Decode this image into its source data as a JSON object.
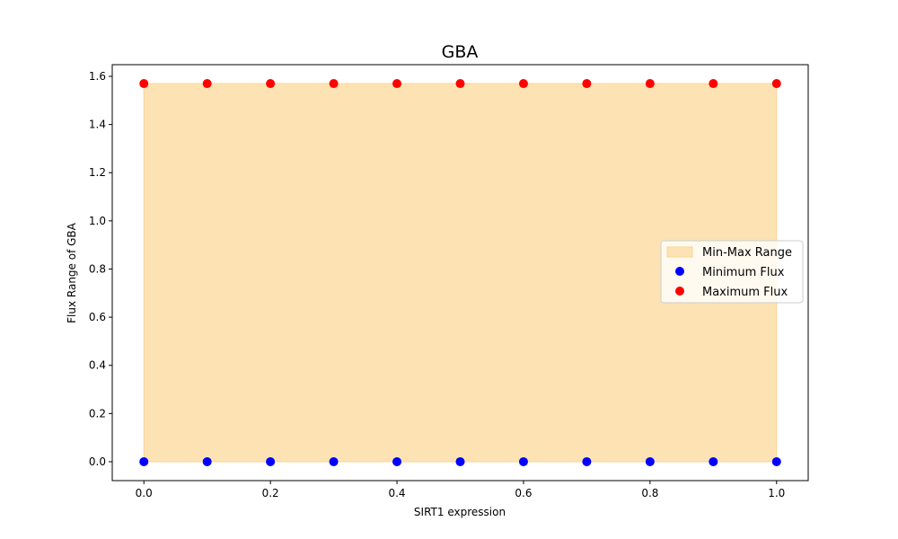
{
  "chart_data": {
    "type": "scatter",
    "title": "GBA",
    "xlabel": "SIRT1 expression",
    "ylabel": "Flux Range of GBA",
    "x": [
      0.0,
      0.1,
      0.2,
      0.3,
      0.4,
      0.5,
      0.6,
      0.7,
      0.8,
      0.9,
      1.0
    ],
    "xlim": [
      -0.05,
      1.05
    ],
    "ylim": [
      -0.0785,
      1.6485
    ],
    "xticks": [
      0.0,
      0.2,
      0.4,
      0.6,
      0.8,
      1.0
    ],
    "xtick_labels": [
      "0.0",
      "0.2",
      "0.4",
      "0.6",
      "0.8",
      "1.0"
    ],
    "yticks": [
      0.0,
      0.2,
      0.4,
      0.6,
      0.8,
      1.0,
      1.2,
      1.4,
      1.6
    ],
    "ytick_labels": [
      "0.0",
      "0.2",
      "0.4",
      "0.6",
      "0.8",
      "1.0",
      "1.2",
      "1.4",
      "1.6"
    ],
    "grid": false,
    "legend_position": "center-right",
    "band": {
      "name": "Min-Max Range",
      "lower": [
        0,
        0,
        0,
        0,
        0,
        0,
        0,
        0,
        0,
        0,
        0
      ],
      "upper": [
        1.57,
        1.57,
        1.57,
        1.57,
        1.57,
        1.57,
        1.57,
        1.57,
        1.57,
        1.57,
        1.57
      ],
      "color": "#fde3b4",
      "edge_color": "#fcd495"
    },
    "series": [
      {
        "name": "Minimum Flux",
        "type": "scatter",
        "values": [
          0,
          0,
          0,
          0,
          0,
          0,
          0,
          0,
          0,
          0,
          0
        ],
        "color": "#0000ff"
      },
      {
        "name": "Maximum Flux",
        "type": "scatter",
        "values": [
          1.57,
          1.57,
          1.57,
          1.57,
          1.57,
          1.57,
          1.57,
          1.57,
          1.57,
          1.57,
          1.57
        ],
        "color": "#ff0000"
      }
    ]
  }
}
